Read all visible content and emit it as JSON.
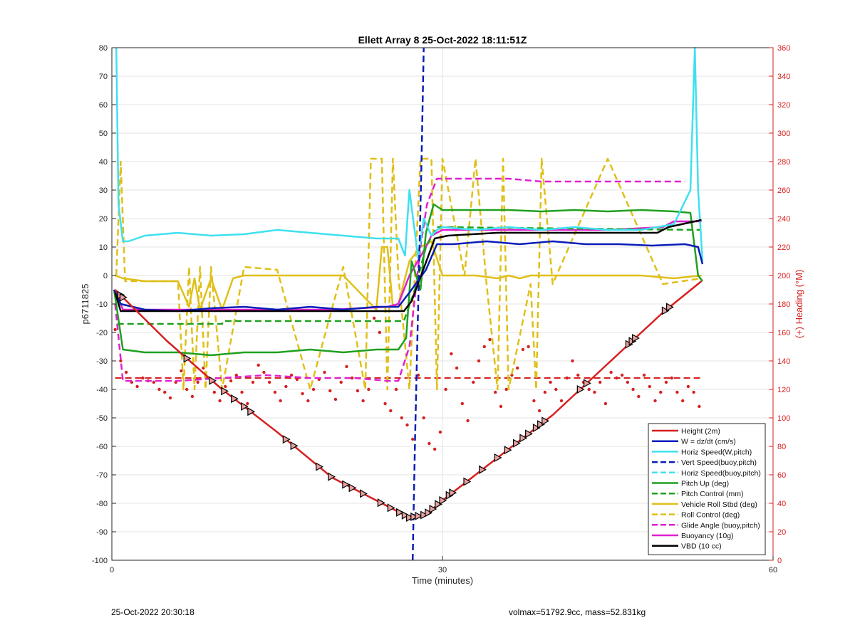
{
  "chart_data": {
    "type": "line",
    "title": "Ellett Array 8 25-Oct-2022 18:11:51Z",
    "xlabel": "Time (minutes)",
    "ylabel": "p6711825",
    "ylabel_right": "(+) Heading (°M)",
    "xlim": [
      0,
      60
    ],
    "ylim": [
      -100,
      80
    ],
    "ylim_right": [
      0,
      360
    ],
    "xticks": [
      0,
      30,
      60
    ],
    "yticks": [
      -100,
      -90,
      -80,
      -70,
      -60,
      -50,
      -40,
      -30,
      -20,
      -10,
      0,
      10,
      20,
      30,
      40,
      50,
      60,
      70,
      80
    ],
    "yticks_right": [
      0,
      20,
      40,
      60,
      80,
      100,
      120,
      140,
      160,
      180,
      200,
      220,
      240,
      260,
      280,
      300,
      320,
      340,
      360
    ],
    "grid": true,
    "legend_position": "bottom-right",
    "series": [
      {
        "name": "Height (2m)",
        "color": "#d62020",
        "style": "solid",
        "x": [
          0.3,
          5,
          10,
          15,
          20,
          25,
          27,
          28.5,
          30,
          35,
          40,
          45,
          50,
          53.5
        ],
        "y": [
          -5,
          -23,
          -40,
          -55,
          -71,
          -81,
          -85,
          -84,
          -79,
          -64,
          -49,
          -31,
          -13,
          -2
        ]
      },
      {
        "name": "W = dz/dt (cm/s)",
        "color": "#0a1db8",
        "style": "solid",
        "x": [
          0.2,
          0.8,
          3,
          6,
          9,
          12,
          15,
          18,
          21,
          24,
          26,
          27,
          28.5,
          29.5,
          31,
          34,
          37,
          40,
          43,
          46,
          49,
          52,
          53.2,
          53.6
        ],
        "y": [
          -5,
          -10,
          -12,
          -12.5,
          -11.5,
          -11,
          -12,
          -11,
          -12,
          -11,
          -11,
          -6,
          2,
          11,
          11,
          12,
          11,
          12,
          11,
          11,
          10.5,
          11,
          10,
          4
        ]
      },
      {
        "name": "Horiz Speed(W,pitch)",
        "color": "#3fe0f0",
        "style": "solid",
        "x": [
          0.4,
          0.6,
          1,
          1.5,
          3,
          6,
          9,
          12,
          15,
          18,
          21,
          24,
          26,
          26.6,
          27,
          27.4,
          27.8,
          28.3,
          29,
          29.5,
          30,
          33,
          36,
          39,
          42,
          45,
          48,
          51,
          52.5,
          52.9,
          53.2,
          53.6
        ],
        "y": [
          80,
          25,
          12,
          12,
          14,
          15,
          14,
          14.5,
          16,
          15,
          14,
          13,
          13,
          7,
          30,
          18,
          6,
          20,
          14,
          16,
          17,
          16,
          17,
          16,
          17,
          16,
          16,
          18,
          30,
          80,
          30,
          5
        ]
      },
      {
        "name": "Vert Speed(buoy,pitch)",
        "color": "#0a1db8",
        "style": "dashed",
        "x": [
          27.3,
          27.5,
          28.1,
          28.3
        ],
        "y": [
          -100,
          -60,
          40,
          80
        ]
      },
      {
        "name": "Horiz Speed(buoy,pitch)",
        "color": "#3fe0f0",
        "style": "dashed",
        "x": [],
        "y": []
      },
      {
        "name": "Pitch Up (deg)",
        "color": "#1fa01f",
        "style": "solid",
        "x": [
          0.2,
          1,
          3,
          6,
          9,
          12,
          15,
          18,
          21,
          24,
          26,
          26.7,
          27.2,
          28,
          28.5,
          29.2,
          30,
          33,
          36,
          39,
          42,
          45,
          48,
          51,
          52.5,
          53.2,
          53.6
        ],
        "y": [
          -5,
          -26,
          -27,
          -27,
          -28,
          -27,
          -27,
          -26,
          -27,
          -26,
          -26,
          -22,
          5,
          -5,
          15,
          25,
          23,
          23,
          23,
          22.5,
          23,
          22.5,
          23,
          22.5,
          22,
          0,
          -2
        ]
      },
      {
        "name": "Pitch Control (mm)",
        "color": "#1fa01f",
        "style": "dashed",
        "x": [
          0.5,
          10,
          10.1,
          26.5,
          27.5,
          28.5,
          29.5,
          53.5
        ],
        "y": [
          -17,
          -17,
          -16,
          -16,
          -5,
          10,
          17,
          16
        ]
      },
      {
        "name": "Vehicle Roll Stbd (deg)",
        "color": "#e0bf18",
        "style": "solid",
        "x": [
          0.3,
          1,
          3,
          6,
          7,
          7.5,
          8,
          9,
          10,
          11,
          12,
          15,
          18,
          21,
          24,
          24.5,
          25,
          25.5,
          26,
          27,
          28,
          29,
          30,
          33,
          35,
          36,
          37,
          38,
          39,
          42,
          45,
          48,
          51,
          53.5
        ],
        "y": [
          0,
          -1,
          -2,
          -2,
          -11,
          -1,
          -12,
          -1,
          -12,
          -1,
          0,
          0,
          0,
          0,
          -12,
          10,
          10,
          -11,
          -10,
          5,
          10,
          12,
          0,
          0,
          -1,
          0,
          -1,
          0,
          0,
          0,
          0,
          0,
          -1,
          0
        ]
      },
      {
        "name": "Roll Control (deg)",
        "color": "#e0bf18",
        "style": "dashed",
        "x": [
          0.4,
          0.8,
          1.2,
          3,
          6,
          6.5,
          7,
          7.5,
          8,
          8.5,
          9,
          10,
          12,
          15,
          18,
          21,
          23,
          23.5,
          24.5,
          25,
          25.5,
          26,
          27,
          28,
          29,
          29.5,
          30,
          32,
          33,
          34,
          35,
          35.5,
          36,
          38,
          38.5,
          39,
          40,
          45,
          50,
          53.5
        ],
        "y": [
          0,
          40,
          -2,
          -2,
          -2,
          -40,
          3,
          -40,
          3,
          -40,
          3,
          -40,
          3,
          2,
          -40,
          3,
          -40,
          41,
          41,
          -40,
          41,
          0,
          -40,
          41,
          41,
          -40,
          41,
          0,
          41,
          -3,
          -40,
          41,
          -40,
          -3,
          -40,
          41,
          -3,
          41,
          -3,
          -1
        ]
      },
      {
        "name": "Glide Angle (buoy,pitch)",
        "color": "#e020d0",
        "style": "dashed",
        "x": [
          0.3,
          1,
          6,
          10,
          14,
          18,
          22,
          25,
          26,
          27,
          28,
          28.6,
          29.5,
          30,
          33,
          36,
          39,
          42,
          45,
          48,
          51,
          52
        ],
        "y": [
          -10,
          -37,
          -37,
          -36,
          -35,
          -36,
          -36,
          -37,
          -37,
          -25,
          10,
          25,
          34,
          34,
          34,
          34,
          33,
          33,
          33,
          33,
          33,
          33
        ]
      },
      {
        "name": "Buoyancy (10g)",
        "color": "#e020d0",
        "style": "solid",
        "x": [
          0.3,
          1,
          10,
          20,
          25,
          26,
          27,
          28.5,
          29,
          30,
          35,
          40,
          45,
          50,
          51,
          53.5
        ],
        "y": [
          -5,
          -12,
          -12,
          -12,
          -11,
          -10,
          0,
          10,
          14,
          16,
          16,
          16,
          16,
          17,
          19,
          19
        ]
      },
      {
        "name": "VBD (10 cc)",
        "color": "#000000",
        "style": "solid",
        "x": [
          0.3,
          0.8,
          10,
          20,
          26.5,
          27.2,
          29.3,
          30.5,
          35,
          40,
          45,
          49.5,
          50.5,
          53.5
        ],
        "y": [
          -6,
          -12.5,
          -12.5,
          -12.5,
          -12.5,
          -9,
          13,
          14,
          15,
          15,
          15,
          15,
          17,
          19.5
        ]
      }
    ],
    "heading_mean": {
      "color": "#d62020",
      "style": "dashed",
      "x": [
        0.3,
        53.5
      ],
      "y_right": [
        128,
        128
      ]
    },
    "heading_points": {
      "color": "#d62020",
      "style": "dots",
      "axis": "right",
      "x": [
        0.3,
        0.8,
        1.3,
        1.8,
        2.3,
        2.8,
        3.3,
        3.8,
        4.3,
        4.8,
        5.3,
        5.8,
        6.3,
        6.8,
        7.3,
        7.8,
        8.3,
        8.8,
        9.3,
        9.8,
        10.3,
        10.8,
        11.3,
        11.8,
        12.3,
        12.8,
        13.3,
        13.8,
        14.3,
        14.8,
        15.3,
        15.8,
        16.3,
        16.8,
        17.3,
        17.8,
        18.3,
        18.8,
        19.3,
        19.8,
        20.3,
        20.8,
        21.3,
        21.8,
        22.3,
        22.8,
        23.3,
        23.8,
        24.3,
        24.8,
        25.3,
        25.8,
        26.3,
        26.8,
        27.3,
        27.8,
        28.3,
        28.8,
        29.3,
        29.8,
        30.3,
        30.8,
        31.3,
        31.8,
        32.3,
        32.8,
        33.3,
        33.8,
        34.3,
        34.8,
        35.3,
        35.8,
        36.3,
        36.8,
        37.3,
        37.8,
        38.3,
        38.8,
        39.3,
        39.8,
        40.3,
        40.8,
        41.3,
        41.8,
        42.3,
        42.8,
        43.3,
        43.8,
        44.3,
        44.8,
        45.3,
        45.8,
        46.3,
        46.8,
        47.3,
        47.8,
        48.3,
        48.8,
        49.3,
        49.8,
        50.3,
        50.8,
        51.3,
        51.8,
        52.3,
        52.8,
        53.3
      ],
      "y": [
        162,
        140,
        132,
        125,
        122,
        128,
        126,
        125,
        120,
        118,
        114,
        125,
        133,
        120,
        115,
        125,
        135,
        128,
        118,
        112,
        122,
        126,
        130,
        118,
        110,
        125,
        137,
        132,
        125,
        118,
        112,
        122,
        130,
        127,
        117,
        112,
        120,
        127,
        132,
        119,
        113,
        125,
        136,
        128,
        119,
        112,
        120,
        170,
        160,
        110,
        105,
        120,
        100,
        95,
        85,
        130,
        100,
        82,
        78,
        90,
        120,
        145,
        135,
        110,
        98,
        125,
        140,
        150,
        155,
        118,
        108,
        120,
        130,
        135,
        148,
        150,
        112,
        105,
        118,
        125,
        120,
        112,
        128,
        140,
        130,
        125,
        120,
        118,
        125,
        110,
        132,
        128,
        130,
        125,
        120,
        115,
        130,
        122,
        112,
        118,
        125,
        128,
        118,
        112,
        122,
        118,
        108
      ]
    }
  },
  "legend": {
    "items": [
      {
        "label": "Height (2m)",
        "color": "#d62020",
        "style": "solid"
      },
      {
        "label": "W = dz/dt (cm/s)",
        "color": "#0a1db8",
        "style": "solid"
      },
      {
        "label": "Horiz Speed(W,pitch)",
        "color": "#3fe0f0",
        "style": "solid"
      },
      {
        "label": "Vert Speed(buoy,pitch)",
        "color": "#0a1db8",
        "style": "dashed"
      },
      {
        "label": "Horiz Speed(buoy,pitch)",
        "color": "#3fe0f0",
        "style": "dashed"
      },
      {
        "label": "Pitch Up (deg)",
        "color": "#1fa01f",
        "style": "solid"
      },
      {
        "label": "Pitch Control (mm)",
        "color": "#1fa01f",
        "style": "dashed"
      },
      {
        "label": "Vehicle Roll Stbd (deg)",
        "color": "#e0bf18",
        "style": "solid"
      },
      {
        "label": "Roll Control (deg)",
        "color": "#e0bf18",
        "style": "dashed"
      },
      {
        "label": "Glide Angle (buoy,pitch)",
        "color": "#e020d0",
        "style": "dashed"
      },
      {
        "label": "Buoyancy (10g)",
        "color": "#e020d0",
        "style": "solid"
      },
      {
        "label": "VBD (10 cc)",
        "color": "#000000",
        "style": "solid"
      }
    ]
  },
  "footer": {
    "timestamp": "25-Oct-2022 20:30:18",
    "info": "volmax=51792.9cc, mass=52.831kg"
  }
}
